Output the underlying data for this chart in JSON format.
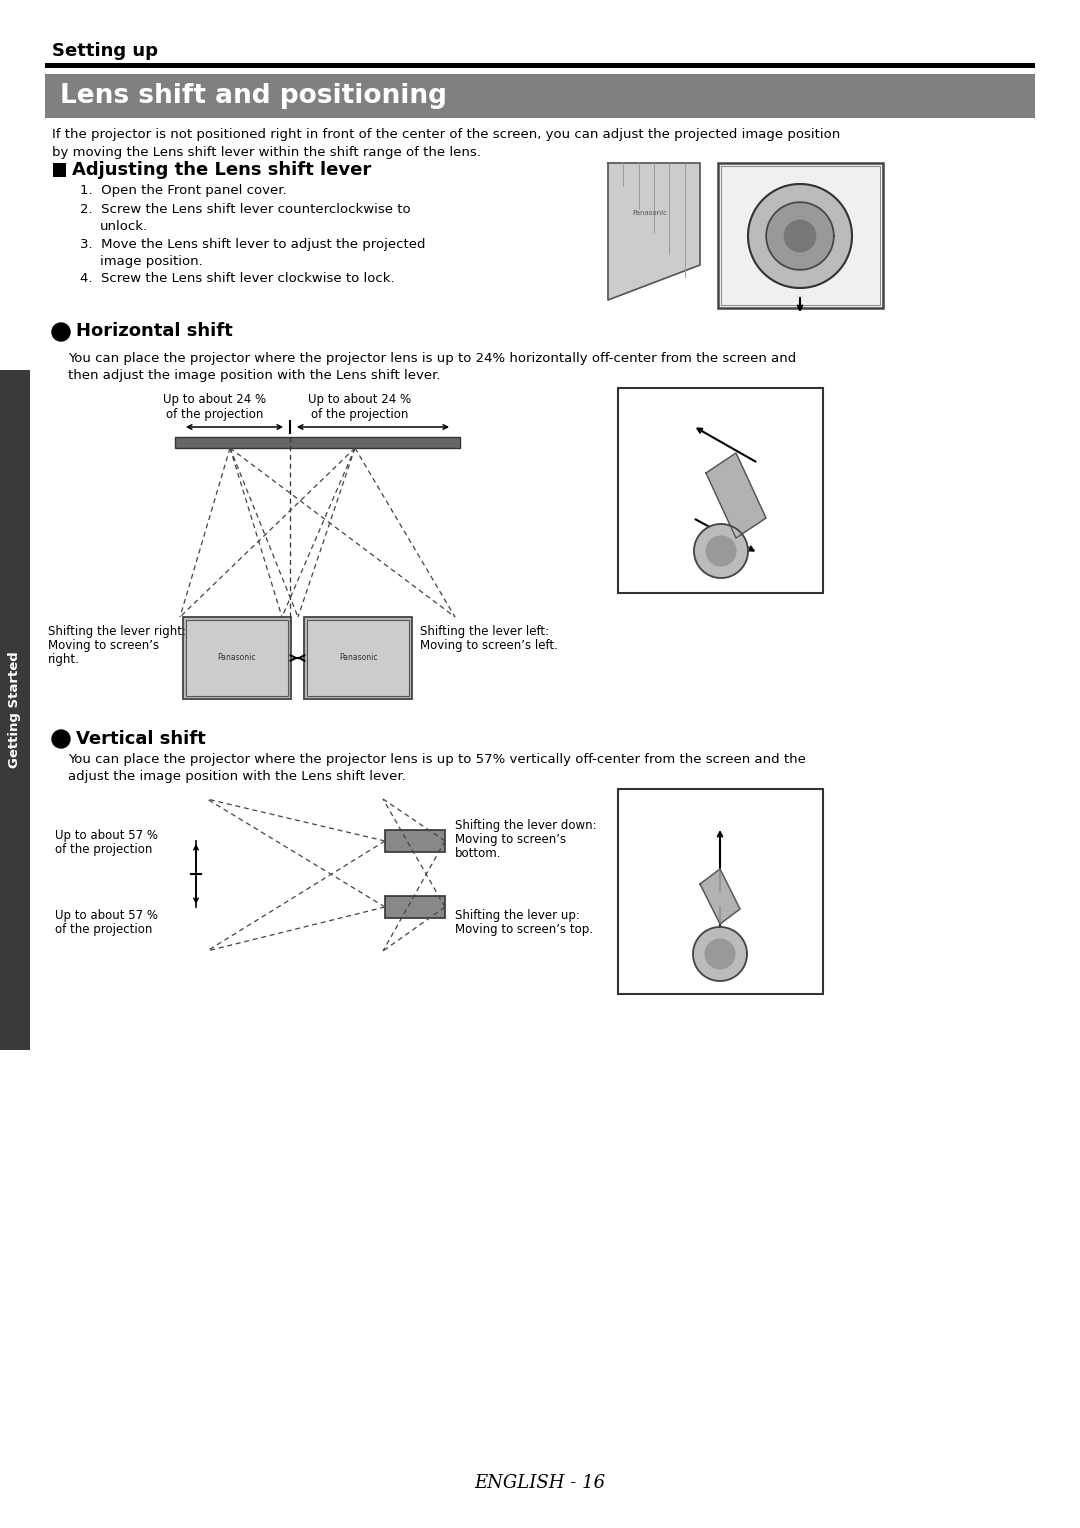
{
  "page_bg": "#ffffff",
  "sidebar_bg": "#3a3a3a",
  "section_banner_bg": "#808080",
  "title_section": "Setting up",
  "main_title": "Lens shift and positioning",
  "intro_line1": "If the projector is not positioned right in front of the center of the screen, you can adjust the projected image position",
  "intro_line2": "by moving the Lens shift lever within the shift range of the lens.",
  "adjusting_title": "Adjusting the Lens shift lever",
  "step1": "Open the Front panel cover.",
  "step2a": "Screw the Lens shift lever counterclockwise to",
  "step2b": "unlock.",
  "step3a": "Move the Lens shift lever to adjust the projected",
  "step3b": "image position.",
  "step4": "Screw the Lens shift lever clockwise to lock.",
  "horizontal_title": "Horizontal shift",
  "horizontal_desc1": "You can place the projector where the projector lens is up to 24% horizontally off-center from the screen and",
  "horizontal_desc2": "then adjust the image position with the Lens shift lever.",
  "h_label_left1": "Up to about 24 %",
  "h_label_left2": "of the projection",
  "h_label_right1": "Up to about 24 %",
  "h_label_right2": "of the projection",
  "h_shift_right1": "Shifting the lever right:",
  "h_shift_right2": "Moving to screen’s",
  "h_shift_right3": "right.",
  "h_shift_left1": "Shifting the lever left:",
  "h_shift_left2": "Moving to screen’s left.",
  "vertical_title": "Vertical shift",
  "vertical_desc1": "You can place the projector where the projector lens is up to 57% vertically off-center from the screen and the",
  "vertical_desc2": "adjust the image position with the Lens shift lever.",
  "v_label_top1": "Up to about 57 %",
  "v_label_top2": "of the projection",
  "v_label_bot1": "Up to about 57 %",
  "v_label_bot2": "of the projection",
  "v_shift_down1": "Shifting the lever down:",
  "v_shift_down2": "Moving to screen’s",
  "v_shift_down3": "bottom.",
  "v_shift_up1": "Shifting the lever up:",
  "v_shift_up2": "Moving to screen’s top.",
  "footer": "ENGLISH - 16",
  "sidebar_label": "Getting Started"
}
